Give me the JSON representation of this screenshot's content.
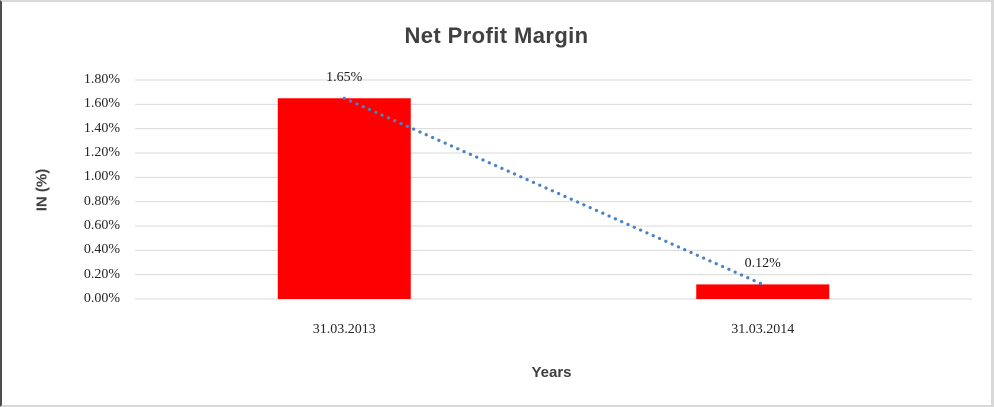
{
  "chart_data": {
    "type": "bar",
    "title": "Net Profit Margin",
    "xlabel": "Years",
    "ylabel": "IN (%)",
    "categories": [
      "31.03.2013",
      "31.03.2014"
    ],
    "values": [
      1.65,
      0.12
    ],
    "data_labels": [
      "1.65%",
      "0.12%"
    ],
    "ylim": [
      0,
      1.8
    ],
    "ytick_step": 0.2,
    "ytick_labels": [
      "0.00%",
      "0.20%",
      "0.40%",
      "0.60%",
      "0.80%",
      "1.00%",
      "1.20%",
      "1.40%",
      "1.60%",
      "1.80%"
    ],
    "grid": true,
    "legend": "none",
    "trendline": {
      "type": "linear",
      "style": "dotted",
      "points": [
        1.65,
        0.12
      ]
    },
    "appearance": {
      "bar_color": "#FF0000",
      "trendline_color": "#4A82C4",
      "gridline_color": "#D9D9D9",
      "title_color": "#404040",
      "tick_text_color": "#262626"
    }
  }
}
